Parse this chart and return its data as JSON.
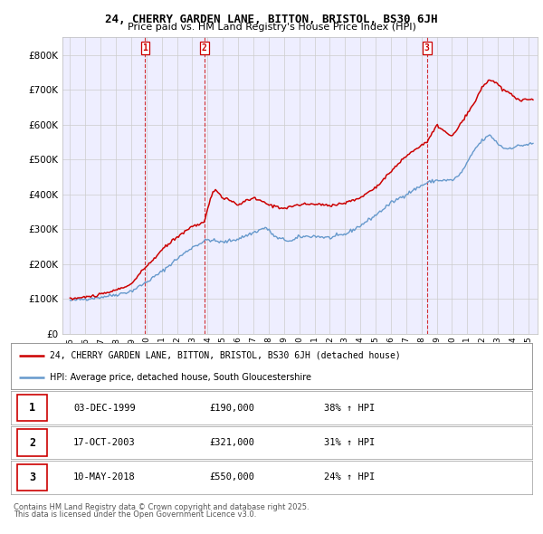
{
  "title": "24, CHERRY GARDEN LANE, BITTON, BRISTOL, BS30 6JH",
  "subtitle": "Price paid vs. HM Land Registry's House Price Index (HPI)",
  "legend_line1": "24, CHERRY GARDEN LANE, BITTON, BRISTOL, BS30 6JH (detached house)",
  "legend_line2": "HPI: Average price, detached house, South Gloucestershire",
  "footer1": "Contains HM Land Registry data © Crown copyright and database right 2025.",
  "footer2": "This data is licensed under the Open Government Licence v3.0.",
  "sales": [
    {
      "num": 1,
      "date": "03-DEC-1999",
      "price": 190000,
      "hpi_pct": "38% ↑ HPI",
      "year": 1999.92
    },
    {
      "num": 2,
      "date": "17-OCT-2003",
      "price": 321000,
      "hpi_pct": "31% ↑ HPI",
      "year": 2003.79
    },
    {
      "num": 3,
      "date": "10-MAY-2018",
      "price": 550000,
      "hpi_pct": "24% ↑ HPI",
      "year": 2018.36
    }
  ],
  "red_color": "#cc0000",
  "blue_color": "#6699cc",
  "grid_color": "#cccccc",
  "bg_color": "#ffffff",
  "plot_bg_color": "#eeeeff",
  "ylim": [
    0,
    850000
  ],
  "yticks": [
    0,
    100000,
    200000,
    300000,
    400000,
    500000,
    600000,
    700000,
    800000
  ],
  "ytick_labels": [
    "£0",
    "£100K",
    "£200K",
    "£300K",
    "£400K",
    "£500K",
    "£600K",
    "£700K",
    "£800K"
  ],
  "xlim_start": 1994.5,
  "xlim_end": 2025.6
}
